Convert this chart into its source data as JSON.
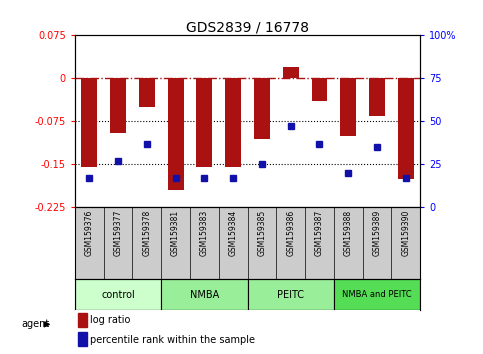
{
  "title": "GDS2839 / 16778",
  "samples": [
    "GSM159376",
    "GSM159377",
    "GSM159378",
    "GSM159381",
    "GSM159383",
    "GSM159384",
    "GSM159385",
    "GSM159386",
    "GSM159387",
    "GSM159388",
    "GSM159389",
    "GSM159390"
  ],
  "log_ratio": [
    -0.155,
    -0.095,
    -0.05,
    -0.195,
    -0.155,
    -0.155,
    -0.105,
    0.02,
    -0.04,
    -0.1,
    -0.065,
    -0.175
  ],
  "percentile_rank": [
    17,
    27,
    37,
    17,
    17,
    17,
    25,
    47,
    37,
    20,
    35,
    17
  ],
  "group_labels": [
    "control",
    "NMBA",
    "PEITC",
    "NMBA and PEITC"
  ],
  "group_colors": [
    "#ccffcc",
    "#99ee99",
    "#99ee99",
    "#55dd55"
  ],
  "group_starts": [
    0,
    3,
    6,
    9
  ],
  "group_ends": [
    3,
    6,
    9,
    12
  ],
  "ylim_left": [
    -0.225,
    0.075
  ],
  "ylim_right": [
    0,
    100
  ],
  "yticks_left": [
    0.075,
    0,
    -0.075,
    -0.15,
    -0.225
  ],
  "yticks_right": [
    100,
    75,
    50,
    25,
    0
  ],
  "hlines_dotted": [
    -0.075,
    -0.15
  ],
  "hline_dashdot": 0,
  "bar_color": "#aa1111",
  "dot_color": "#1111aa",
  "bar_width": 0.55,
  "sample_cell_color": "#cccccc",
  "background_color": "#ffffff",
  "label_log_ratio": "log ratio",
  "label_percentile": "percentile rank within the sample"
}
